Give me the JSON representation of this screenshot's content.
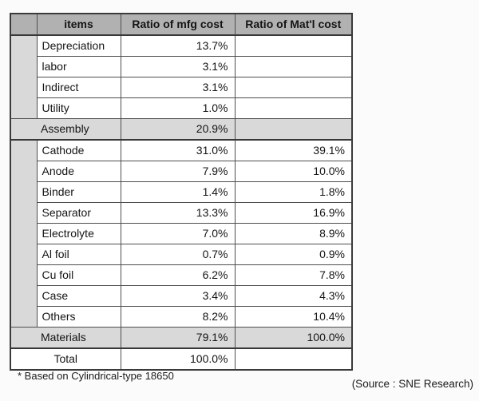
{
  "table": {
    "headers": [
      "items",
      "Ratio of mfg cost",
      "Ratio of Mat'l cost"
    ],
    "groups": [
      {
        "rows": [
          {
            "item": "Depreciation",
            "mfg": "13.7%",
            "matl": ""
          },
          {
            "item": "labor",
            "mfg": "3.1%",
            "matl": ""
          },
          {
            "item": "Indirect",
            "mfg": "3.1%",
            "matl": ""
          },
          {
            "item": "Utility",
            "mfg": "1.0%",
            "matl": ""
          }
        ],
        "subtotal": {
          "item": "Assembly",
          "mfg": "20.9%",
          "matl": ""
        }
      },
      {
        "rows": [
          {
            "item": "Cathode",
            "mfg": "31.0%",
            "matl": "39.1%"
          },
          {
            "item": "Anode",
            "mfg": "7.9%",
            "matl": "10.0%"
          },
          {
            "item": "Binder",
            "mfg": "1.4%",
            "matl": "1.8%"
          },
          {
            "item": "Separator",
            "mfg": "13.3%",
            "matl": "16.9%"
          },
          {
            "item": "Electrolyte",
            "mfg": "7.0%",
            "matl": "8.9%"
          },
          {
            "item": "Al foil",
            "mfg": "0.7%",
            "matl": "0.9%"
          },
          {
            "item": "Cu foil",
            "mfg": "6.2%",
            "matl": "7.8%"
          },
          {
            "item": "Case",
            "mfg": "3.4%",
            "matl": "4.3%"
          },
          {
            "item": "Others",
            "mfg": "8.2%",
            "matl": "10.4%"
          }
        ],
        "subtotal": {
          "item": "Materials",
          "mfg": "79.1%",
          "matl": "100.0%"
        }
      }
    ],
    "total": {
      "item": "Total",
      "mfg": "100.0%",
      "matl": ""
    }
  },
  "footer": {
    "note": "* Based on  Cylindrical-type 18650",
    "source": "(Source : SNE Research)"
  },
  "colors": {
    "header_bg": "#b1b1b1",
    "group_row_bg": "#d9d9d9",
    "border": "#4e4e4e"
  },
  "chart_data": {
    "type": "table",
    "columns": [
      "items",
      "Ratio of mfg cost",
      "Ratio of Mat'l cost"
    ],
    "rows": [
      [
        "Depreciation",
        "13.7%",
        ""
      ],
      [
        "labor",
        "3.1%",
        ""
      ],
      [
        "Indirect",
        "3.1%",
        ""
      ],
      [
        "Utility",
        "1.0%",
        ""
      ],
      [
        "Assembly",
        "20.9%",
        ""
      ],
      [
        "Cathode",
        "31.0%",
        "39.1%"
      ],
      [
        "Anode",
        "7.9%",
        "10.0%"
      ],
      [
        "Binder",
        "1.4%",
        "1.8%"
      ],
      [
        "Separator",
        "13.3%",
        "16.9%"
      ],
      [
        "Electrolyte",
        "7.0%",
        "8.9%"
      ],
      [
        "Al foil",
        "0.7%",
        "0.9%"
      ],
      [
        "Cu foil",
        "6.2%",
        "7.8%"
      ],
      [
        "Case",
        "3.4%",
        "4.3%"
      ],
      [
        "Others",
        "8.2%",
        "10.4%"
      ],
      [
        "Materials",
        "79.1%",
        "100.0%"
      ],
      [
        "Total",
        "100.0%",
        ""
      ]
    ]
  }
}
